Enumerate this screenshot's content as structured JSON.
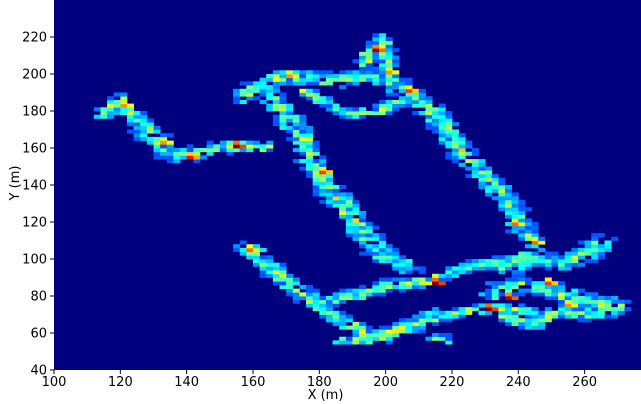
{
  "chart_data": {
    "type": "heatmap",
    "title": "",
    "xlabel": "X (m)",
    "ylabel": "Y (m)",
    "xlim": [
      100,
      277
    ],
    "ylim": [
      40,
      240
    ],
    "xticks": [
      100,
      120,
      140,
      160,
      180,
      200,
      220,
      240,
      260
    ],
    "yticks": [
      40,
      60,
      80,
      100,
      120,
      140,
      160,
      180,
      200,
      220
    ],
    "colormap": "jet",
    "background_color": "#00007f",
    "cell_size": 2,
    "paths": [
      {
        "name": "left-arm",
        "points": [
          [
            115,
            178
          ],
          [
            120,
            186
          ],
          [
            124,
            176
          ],
          [
            130,
            166
          ],
          [
            136,
            155
          ],
          [
            144,
            158
          ],
          [
            152,
            161
          ],
          [
            158,
            161
          ],
          [
            164,
            161
          ]
        ],
        "width": 6
      },
      {
        "name": "top-loop",
        "points": [
          [
            156,
            188
          ],
          [
            162,
            193
          ],
          [
            168,
            198
          ],
          [
            176,
            199
          ],
          [
            184,
            197
          ],
          [
            192,
            198
          ],
          [
            198,
            200
          ],
          [
            204,
            193
          ],
          [
            210,
            186
          ],
          [
            216,
            176
          ],
          [
            221,
            163
          ],
          [
            226,
            152
          ],
          [
            232,
            141
          ],
          [
            237,
            130
          ],
          [
            241,
            118
          ],
          [
            244,
            109
          ]
        ],
        "width": 7
      },
      {
        "name": "top-peak",
        "points": [
          [
            193,
            205
          ],
          [
            196,
            212
          ],
          [
            199,
            219
          ],
          [
            202,
            202
          ]
        ],
        "width": 5
      },
      {
        "name": "mid-diagonal",
        "points": [
          [
            165,
            188
          ],
          [
            170,
            178
          ],
          [
            175,
            165
          ],
          [
            178,
            152
          ],
          [
            182,
            140
          ],
          [
            188,
            128
          ],
          [
            194,
            112
          ],
          [
            200,
            102
          ],
          [
            208,
            95
          ]
        ],
        "width": 7
      },
      {
        "name": "mid-inner",
        "points": [
          [
            176,
            190
          ],
          [
            184,
            183
          ],
          [
            190,
            178
          ],
          [
            198,
            180
          ],
          [
            205,
            186
          ]
        ],
        "width": 4
      },
      {
        "name": "lower-left-hook",
        "points": [
          [
            158,
            106
          ],
          [
            164,
            98
          ],
          [
            170,
            88
          ],
          [
            176,
            80
          ],
          [
            182,
            72
          ],
          [
            188,
            66
          ],
          [
            194,
            60
          ],
          [
            200,
            58
          ],
          [
            208,
            64
          ],
          [
            216,
            70
          ]
        ],
        "width": 6
      },
      {
        "name": "bottom-band",
        "points": [
          [
            178,
            76
          ],
          [
            186,
            79
          ],
          [
            194,
            82
          ],
          [
            202,
            86
          ],
          [
            212,
            88
          ],
          [
            222,
            94
          ],
          [
            232,
            98
          ],
          [
            240,
            100
          ]
        ],
        "width": 5
      },
      {
        "name": "lower-band",
        "points": [
          [
            186,
            56
          ],
          [
            194,
            57
          ],
          [
            204,
            62
          ],
          [
            214,
            68
          ],
          [
            224,
            72
          ],
          [
            234,
            74
          ],
          [
            244,
            72
          ]
        ],
        "width": 4
      },
      {
        "name": "right-cluster-a",
        "points": [
          [
            236,
            94
          ],
          [
            244,
            102
          ],
          [
            252,
            98
          ],
          [
            260,
            102
          ],
          [
            266,
            110
          ]
        ],
        "width": 8
      },
      {
        "name": "right-cluster-b",
        "points": [
          [
            232,
            82
          ],
          [
            240,
            86
          ],
          [
            248,
            84
          ],
          [
            256,
            80
          ],
          [
            264,
            76
          ],
          [
            272,
            74
          ]
        ],
        "width": 8
      },
      {
        "name": "right-cluster-c",
        "points": [
          [
            236,
            70
          ],
          [
            244,
            64
          ],
          [
            252,
            72
          ],
          [
            260,
            70
          ],
          [
            268,
            72
          ]
        ],
        "width": 6
      },
      {
        "name": "small-blob",
        "points": [
          [
            214,
            58
          ],
          [
            218,
            57
          ]
        ],
        "width": 3
      }
    ],
    "hotspots": [
      {
        "x": 155,
        "y": 161,
        "value": 1.0
      },
      {
        "x": 141,
        "y": 155,
        "value": 0.85
      },
      {
        "x": 197,
        "y": 213,
        "value": 0.95
      },
      {
        "x": 215,
        "y": 87,
        "value": 1.0
      },
      {
        "x": 230,
        "y": 73,
        "value": 1.0
      },
      {
        "x": 237,
        "y": 79,
        "value": 0.95
      },
      {
        "x": 180,
        "y": 146,
        "value": 0.8
      },
      {
        "x": 206,
        "y": 190,
        "value": 0.8
      },
      {
        "x": 244,
        "y": 109,
        "value": 0.75
      },
      {
        "x": 158,
        "y": 104,
        "value": 0.75
      },
      {
        "x": 248,
        "y": 86,
        "value": 0.8
      },
      {
        "x": 254,
        "y": 75,
        "value": 0.7
      },
      {
        "x": 170,
        "y": 198,
        "value": 0.7
      },
      {
        "x": 121,
        "y": 183,
        "value": 0.7
      },
      {
        "x": 132,
        "y": 163,
        "value": 0.7
      },
      {
        "x": 200,
        "y": 200,
        "value": 0.7
      },
      {
        "x": 238,
        "y": 118,
        "value": 0.75
      }
    ],
    "grid": false,
    "legend": "none"
  }
}
